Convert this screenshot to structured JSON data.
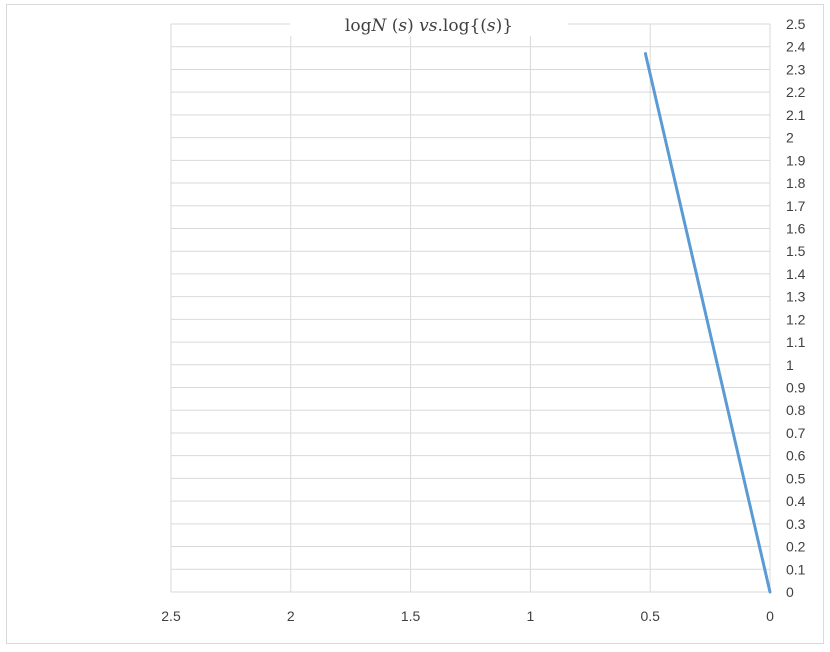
{
  "chart_data": {
    "type": "line",
    "title": "logN (s) vs.log{(s)}",
    "title_parts": {
      "prefix": "log",
      "italic_1": "N",
      "middle_1": " (",
      "italic_2": "s",
      "middle_2": ") ",
      "italic_3": "vs",
      "middle_3": ".log{(",
      "italic_4": "s",
      "suffix": ")}"
    },
    "xlabel": "",
    "ylabel": "",
    "x_reversed": true,
    "y_axis_side": "right",
    "xlim": [
      0,
      2.5
    ],
    "ylim": [
      0,
      2.5
    ],
    "x_ticks": [
      "2.5",
      "2",
      "1.5",
      "1",
      "0.5",
      "0"
    ],
    "x_tick_values": [
      2.5,
      2,
      1.5,
      1,
      0.5,
      0
    ],
    "y_ticks": [
      "0",
      "0.1",
      "0.2",
      "0.3",
      "0.4",
      "0.5",
      "0.6",
      "0.7",
      "0.8",
      "0.9",
      "1",
      "1.1",
      "1.2",
      "1.3",
      "1.4",
      "1.5",
      "1.6",
      "1.7",
      "1.8",
      "1.9",
      "2",
      "2.1",
      "2.2",
      "2.3",
      "2.4",
      "2.5"
    ],
    "y_tick_values": [
      0,
      0.1,
      0.2,
      0.3,
      0.4,
      0.5,
      0.6,
      0.7,
      0.8,
      0.9,
      1,
      1.1,
      1.2,
      1.3,
      1.4,
      1.5,
      1.6,
      1.7,
      1.8,
      1.9,
      2,
      2.1,
      2.2,
      2.3,
      2.4,
      2.5
    ],
    "grid": true,
    "legend": "none",
    "series": [
      {
        "color": "#5b9bd5",
        "x": [
          0,
          0.52
        ],
        "y": [
          0,
          2.37
        ]
      }
    ]
  }
}
